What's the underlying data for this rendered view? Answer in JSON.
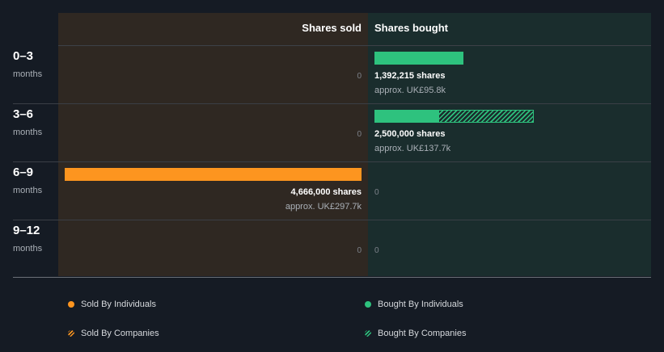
{
  "chart_data": {
    "type": "bar",
    "layout": "diverging-horizontal",
    "headers": {
      "sold": "Shares sold",
      "bought": "Shares bought"
    },
    "periods": [
      {
        "label": "0–3",
        "unit": "months"
      },
      {
        "label": "3–6",
        "unit": "months"
      },
      {
        "label": "6–9",
        "unit": "months"
      },
      {
        "label": "9–12",
        "unit": "months"
      }
    ],
    "scale_max": 4666000,
    "sold": [
      {
        "individuals": 0,
        "companies": 0,
        "zero_label": "0"
      },
      {
        "individuals": 0,
        "companies": 0,
        "zero_label": "0"
      },
      {
        "individuals": 4666000,
        "companies": 0,
        "shares_label": "4,666,000 shares",
        "approx_label": "approx. UK£297.7k"
      },
      {
        "individuals": 0,
        "companies": 0,
        "zero_label": "0"
      }
    ],
    "bought": [
      {
        "individuals": 1392215,
        "companies": 0,
        "shares_label": "1,392,215 shares",
        "approx_label": "approx. UK£95.8k"
      },
      {
        "individuals": 1000000,
        "companies": 1500000,
        "shares_label": "2,500,000 shares",
        "approx_label": "approx. UK£137.7k"
      },
      {
        "individuals": 0,
        "companies": 0,
        "zero_label": "0"
      },
      {
        "individuals": 0,
        "companies": 0,
        "zero_label": "0"
      }
    ],
    "legend": {
      "sold_individuals": "Sold By Individuals",
      "sold_companies": "Sold By Companies",
      "bought_individuals": "Bought By Individuals",
      "bought_companies": "Bought By Companies"
    },
    "colors": {
      "sold": "#fd951f",
      "bought": "#2ec27e"
    }
  }
}
